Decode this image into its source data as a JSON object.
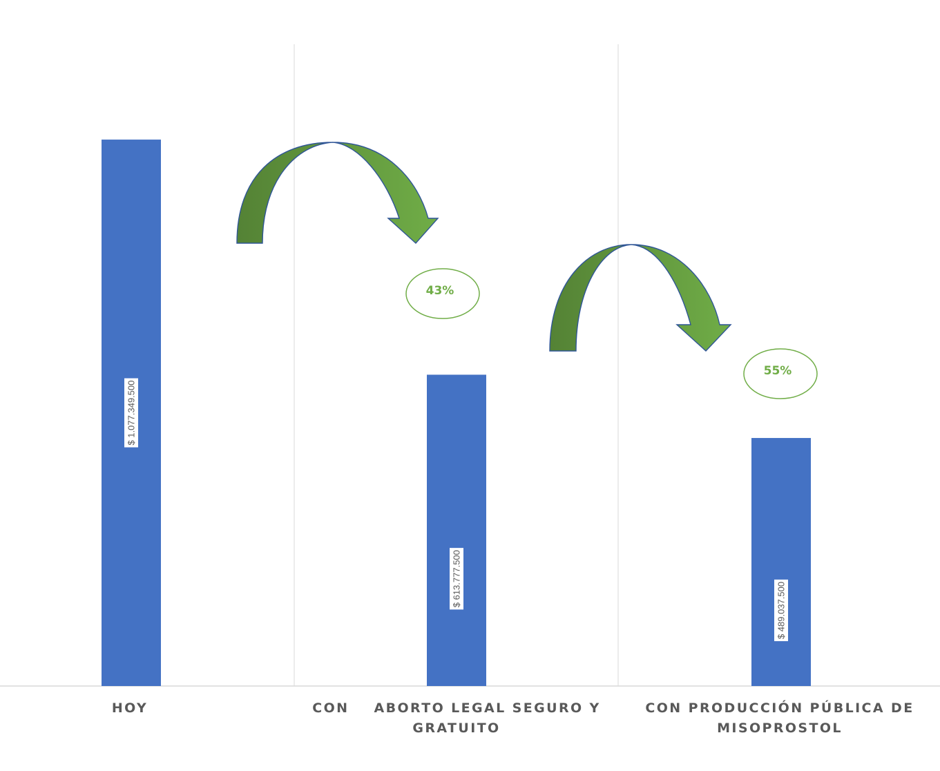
{
  "chart_data": {
    "type": "bar",
    "categories": [
      [
        "HOY"
      ],
      [
        "CON    ABORTO LEGAL SEGURO Y",
        "GRATUITO"
      ],
      [
        "CON PRODUCCIÓN PÚBLICA DE",
        "MISOPROSTOL"
      ]
    ],
    "values": [
      1077349500,
      613777500,
      489037500
    ],
    "data_labels": [
      "$ 1.077.349.500",
      "$ 613.777.500",
      "$ 489.037.500"
    ],
    "annotations": [
      {
        "text": "43%",
        "from": 0,
        "to": 1
      },
      {
        "text": "55%",
        "from": 1,
        "to": 2
      }
    ],
    "title": "",
    "xlabel": "",
    "ylabel": "",
    "ylim": [
      0,
      1200000000
    ],
    "grid": "vertical-category-separators",
    "legend": "none"
  },
  "colors": {
    "bar": "#4472c4",
    "arrow_light": "#70ad47",
    "arrow_dark": "#548235",
    "arrow_outline": "#2f5597",
    "annotation": "#70ad47",
    "gridline": "#d9d9d9",
    "axis": "#d9d9d9",
    "text": "#595959"
  },
  "icons": [
    "curved-arrow-icon"
  ]
}
